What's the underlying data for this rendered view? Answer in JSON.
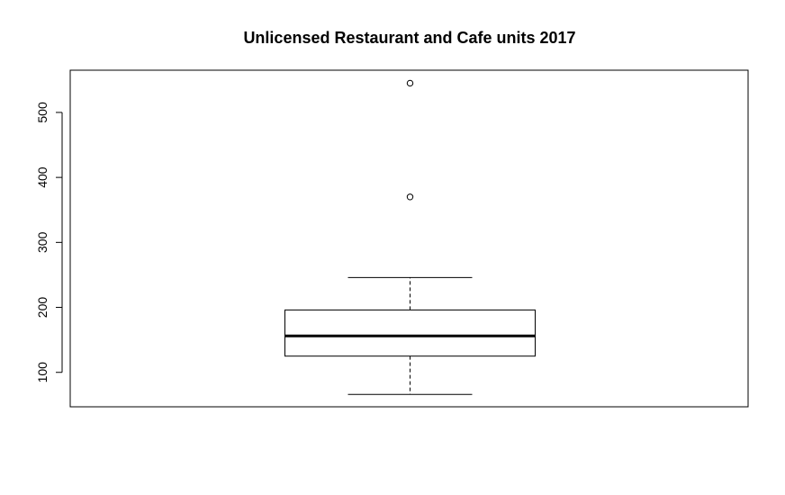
{
  "chart_data": {
    "type": "boxplot",
    "title": "Unlicensed Restaurant and Cafe units 2017",
    "xlabel": "",
    "ylabel": "",
    "ylim": [
      47,
      565
    ],
    "y_ticks": [
      100,
      200,
      300,
      400,
      500
    ],
    "grid": false,
    "legend": "none",
    "box": {
      "min_whisker": 66,
      "q1": 125,
      "median": 156,
      "q3": 196,
      "max_whisker": 246,
      "outliers": [
        370,
        545
      ]
    },
    "colors": {
      "stroke": "#000000",
      "background": "#ffffff"
    }
  }
}
